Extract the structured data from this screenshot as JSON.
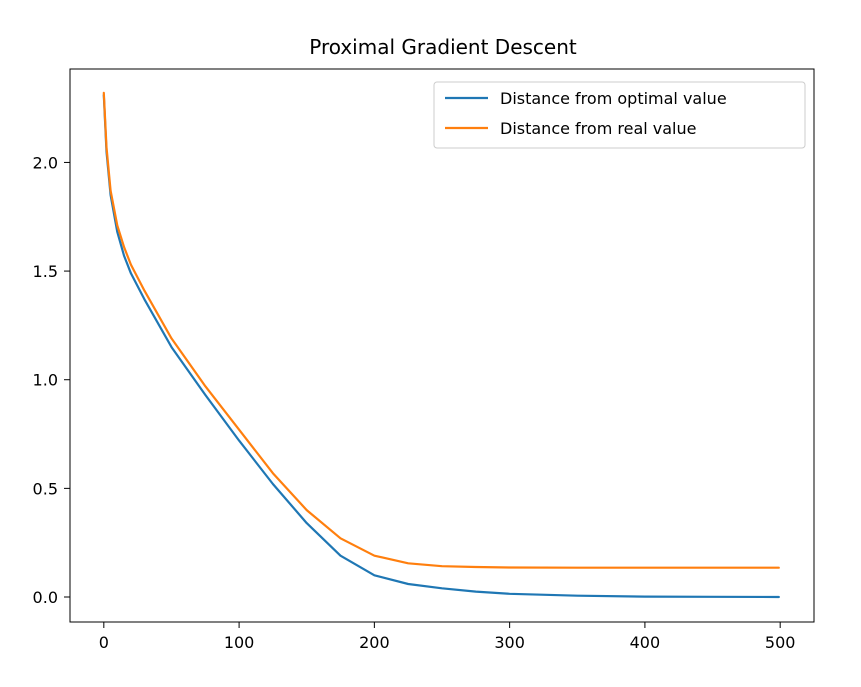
{
  "chart_data": {
    "type": "line",
    "title": "Proximal Gradient Descent",
    "xlabel": "",
    "ylabel": "",
    "xlim": [
      -25,
      525
    ],
    "ylim": [
      -0.115,
      2.43
    ],
    "xticks": [
      0,
      100,
      200,
      300,
      400,
      500
    ],
    "yticks": [
      0.0,
      0.5,
      1.0,
      1.5,
      2.0
    ],
    "xtick_labels": [
      "0",
      "100",
      "200",
      "300",
      "400",
      "500"
    ],
    "ytick_labels": [
      "0.0",
      "0.5",
      "1.0",
      "1.5",
      "2.0"
    ],
    "grid": false,
    "legend_position": "top-right",
    "series": [
      {
        "name": "Distance from optimal value",
        "color": "#1f77b4",
        "x": [
          0,
          2,
          5,
          10,
          15,
          20,
          30,
          50,
          75,
          100,
          125,
          150,
          175,
          200,
          225,
          250,
          275,
          300,
          350,
          400,
          450,
          499
        ],
        "y": [
          2.31,
          2.05,
          1.85,
          1.68,
          1.57,
          1.49,
          1.37,
          1.15,
          0.93,
          0.72,
          0.52,
          0.34,
          0.19,
          0.1,
          0.06,
          0.04,
          0.025,
          0.015,
          0.006,
          0.002,
          0.001,
          0.0
        ]
      },
      {
        "name": "Distance from real value",
        "color": "#ff7f0e",
        "x": [
          0,
          2,
          5,
          10,
          15,
          20,
          30,
          50,
          75,
          100,
          125,
          150,
          175,
          200,
          225,
          250,
          275,
          300,
          350,
          400,
          450,
          499
        ],
        "y": [
          2.32,
          2.07,
          1.87,
          1.71,
          1.61,
          1.53,
          1.41,
          1.19,
          0.97,
          0.77,
          0.57,
          0.4,
          0.27,
          0.19,
          0.155,
          0.142,
          0.138,
          0.136,
          0.135,
          0.135,
          0.135,
          0.135
        ]
      }
    ]
  }
}
